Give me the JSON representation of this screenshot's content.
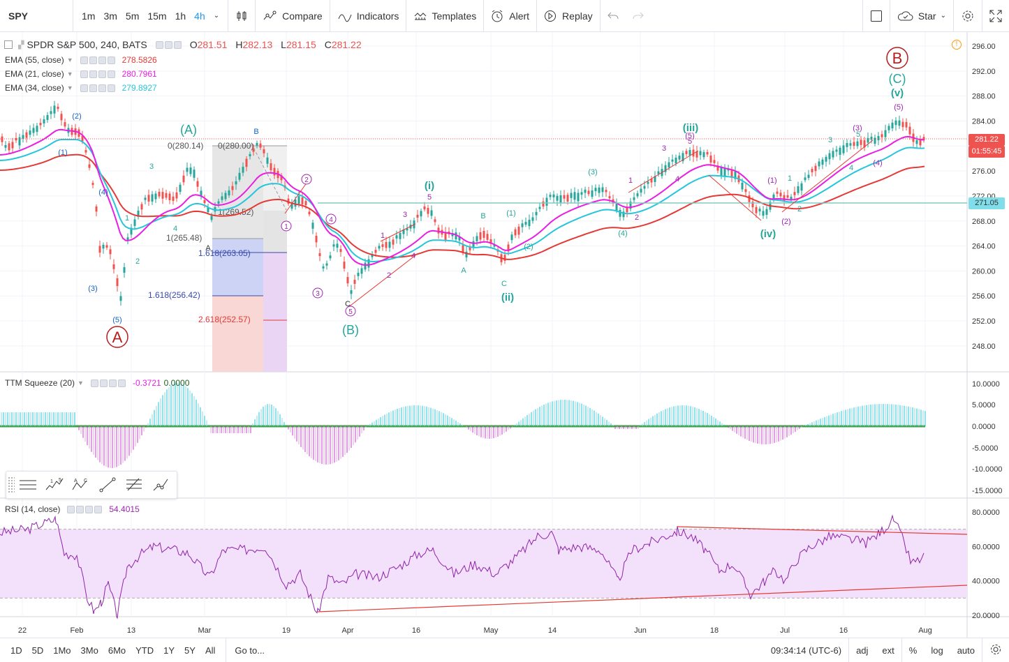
{
  "toolbar": {
    "symbol": "SPY",
    "intervals": [
      "1m",
      "3m",
      "5m",
      "15m",
      "1h",
      "4h"
    ],
    "active_interval": "4h",
    "compare_label": "Compare",
    "indicators_label": "Indicators",
    "templates_label": "Templates",
    "alert_label": "Alert",
    "replay_label": "Replay",
    "star_label": "Star"
  },
  "main_legend": {
    "title": "SPDR S&P 500, 240, BATS",
    "open_k": "O",
    "open_v": "281.51",
    "high_k": "H",
    "high_v": "282.13",
    "low_k": "L",
    "low_v": "281.15",
    "close_k": "C",
    "close_v": "281.22"
  },
  "ema_legends": [
    {
      "name": "EMA (55, close)",
      "value": "278.5826",
      "color": "#e53935"
    },
    {
      "name": "EMA (21, close)",
      "value": "280.7961",
      "color": "#e91ee3"
    },
    {
      "name": "EMA (34, close)",
      "value": "279.8927",
      "color": "#26c6da"
    }
  ],
  "ttm_legend": {
    "name": "TTM Squeeze (20)",
    "value1": "-0.3721",
    "value2": "0.0000"
  },
  "rsi_legend": {
    "name": "RSI (14, close)",
    "value": "54.4015"
  },
  "price_axis": {
    "labels": [
      "296.00",
      "292.00",
      "288.00",
      "284.00",
      "280.00",
      "276.00",
      "272.00",
      "268.00",
      "264.00",
      "260.00",
      "256.00",
      "252.00",
      "248.00"
    ],
    "current_price": "281.22",
    "countdown": "01:55:45",
    "hline_price": "271.05"
  },
  "ttm_axis": {
    "labels": [
      "10.0000",
      "5.0000",
      "0.0000",
      "-5.0000",
      "-10.0000",
      "-15.0000"
    ]
  },
  "rsi_axis": {
    "labels": [
      "80.0000",
      "60.0000",
      "40.0000",
      "20.0000"
    ]
  },
  "time_axis": {
    "labels": [
      "22",
      "Feb",
      "13",
      "Mar",
      "19",
      "Apr",
      "16",
      "May",
      "14",
      "Jun",
      "18",
      "Jul",
      "16",
      "Aug"
    ]
  },
  "fib_labels": [
    "0(280.14)",
    "0(280.00)",
    "1(269.52)",
    "1(265.48)",
    "1.618(263.05)",
    "1.618(256.42)",
    "2.618(252.57)"
  ],
  "wave_labels": {
    "big_a": "A",
    "big_b": "B",
    "wA": "(A)",
    "wB": "(B)",
    "wC": "(C)",
    "wi": "(i)",
    "wii": "(ii)",
    "wiii": "(iii)",
    "wiv": "(iv)",
    "wv": "(v)",
    "p1": "(1)",
    "p2": "(2)",
    "p3": "(3)",
    "p4": "(4)",
    "p5": "(5)",
    "n1": "1",
    "n2": "2",
    "n3": "3",
    "n4": "4",
    "n5": "5",
    "la": "A",
    "lb": "B",
    "lc": "C",
    "c1": "1",
    "c2": "2",
    "c3": "3",
    "c4": "4",
    "c5": "5"
  },
  "bottombar": {
    "ranges": [
      "1D",
      "5D",
      "1Mo",
      "3Mo",
      "6Mo",
      "YTD",
      "1Y",
      "5Y",
      "All"
    ],
    "goto_label": "Go to...",
    "clock": "09:34:14 (UTC-6)",
    "adj": "adj",
    "ext": "ext",
    "pct": "%",
    "log": "log",
    "auto": "auto"
  },
  "colors": {
    "up": "#26a69a",
    "down": "#ef5350",
    "ema55": "#e53935",
    "ema21": "#e91ee3",
    "ema34": "#26c6da",
    "wave_teal": "#26a69a",
    "wave_purple": "#9c27b0",
    "wave_red": "#b71c1c"
  }
}
